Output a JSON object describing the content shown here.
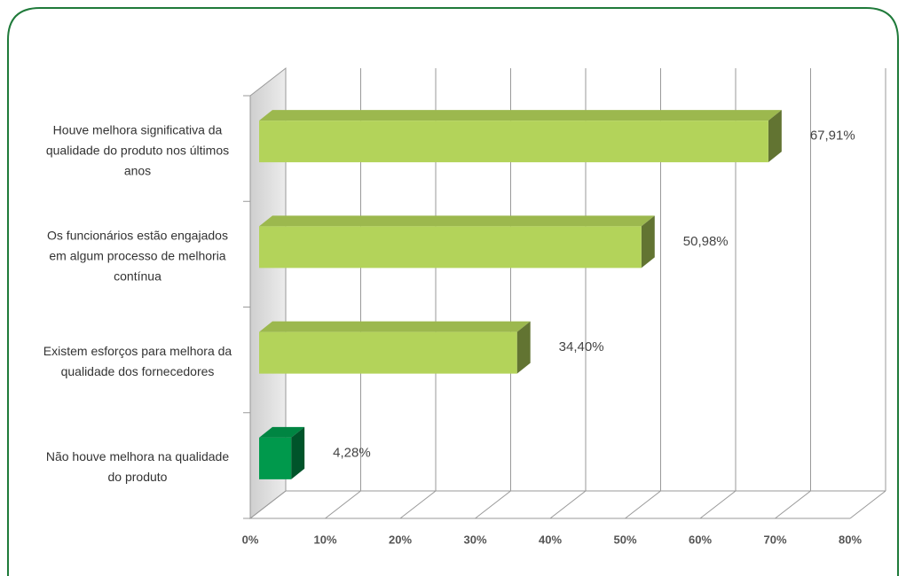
{
  "chart_data": {
    "type": "bar",
    "orientation": "horizontal",
    "categories": [
      "Houve melhora significativa da\nqualidade do produto nos últimos\nanos",
      "Os funcionários estão engajados\nem algum processo de melhoria\ncontínua",
      "Existem esforços para melhora da\nqualidade dos fornecedores",
      "Não houve melhora na qualidade\ndo produto"
    ],
    "values": [
      67.91,
      50.98,
      34.4,
      4.28
    ],
    "value_labels": [
      "67,91%",
      "50,98%",
      "34,40%",
      "4,28%"
    ],
    "colors": [
      "#b3d35a",
      "#b3d35a",
      "#b3d35a",
      "#00994c"
    ],
    "xlim": [
      0,
      80
    ],
    "xticks": [
      {
        "value": 0,
        "label": "0%"
      },
      {
        "value": 10,
        "label": "10%"
      },
      {
        "value": 20,
        "label": "20%"
      },
      {
        "value": 30,
        "label": "30%"
      },
      {
        "value": 40,
        "label": "40%"
      },
      {
        "value": 50,
        "label": "50%"
      },
      {
        "value": 60,
        "label": "60%"
      },
      {
        "value": 70,
        "label": "70%"
      },
      {
        "value": 80,
        "label": "80%"
      }
    ],
    "grid": true
  }
}
